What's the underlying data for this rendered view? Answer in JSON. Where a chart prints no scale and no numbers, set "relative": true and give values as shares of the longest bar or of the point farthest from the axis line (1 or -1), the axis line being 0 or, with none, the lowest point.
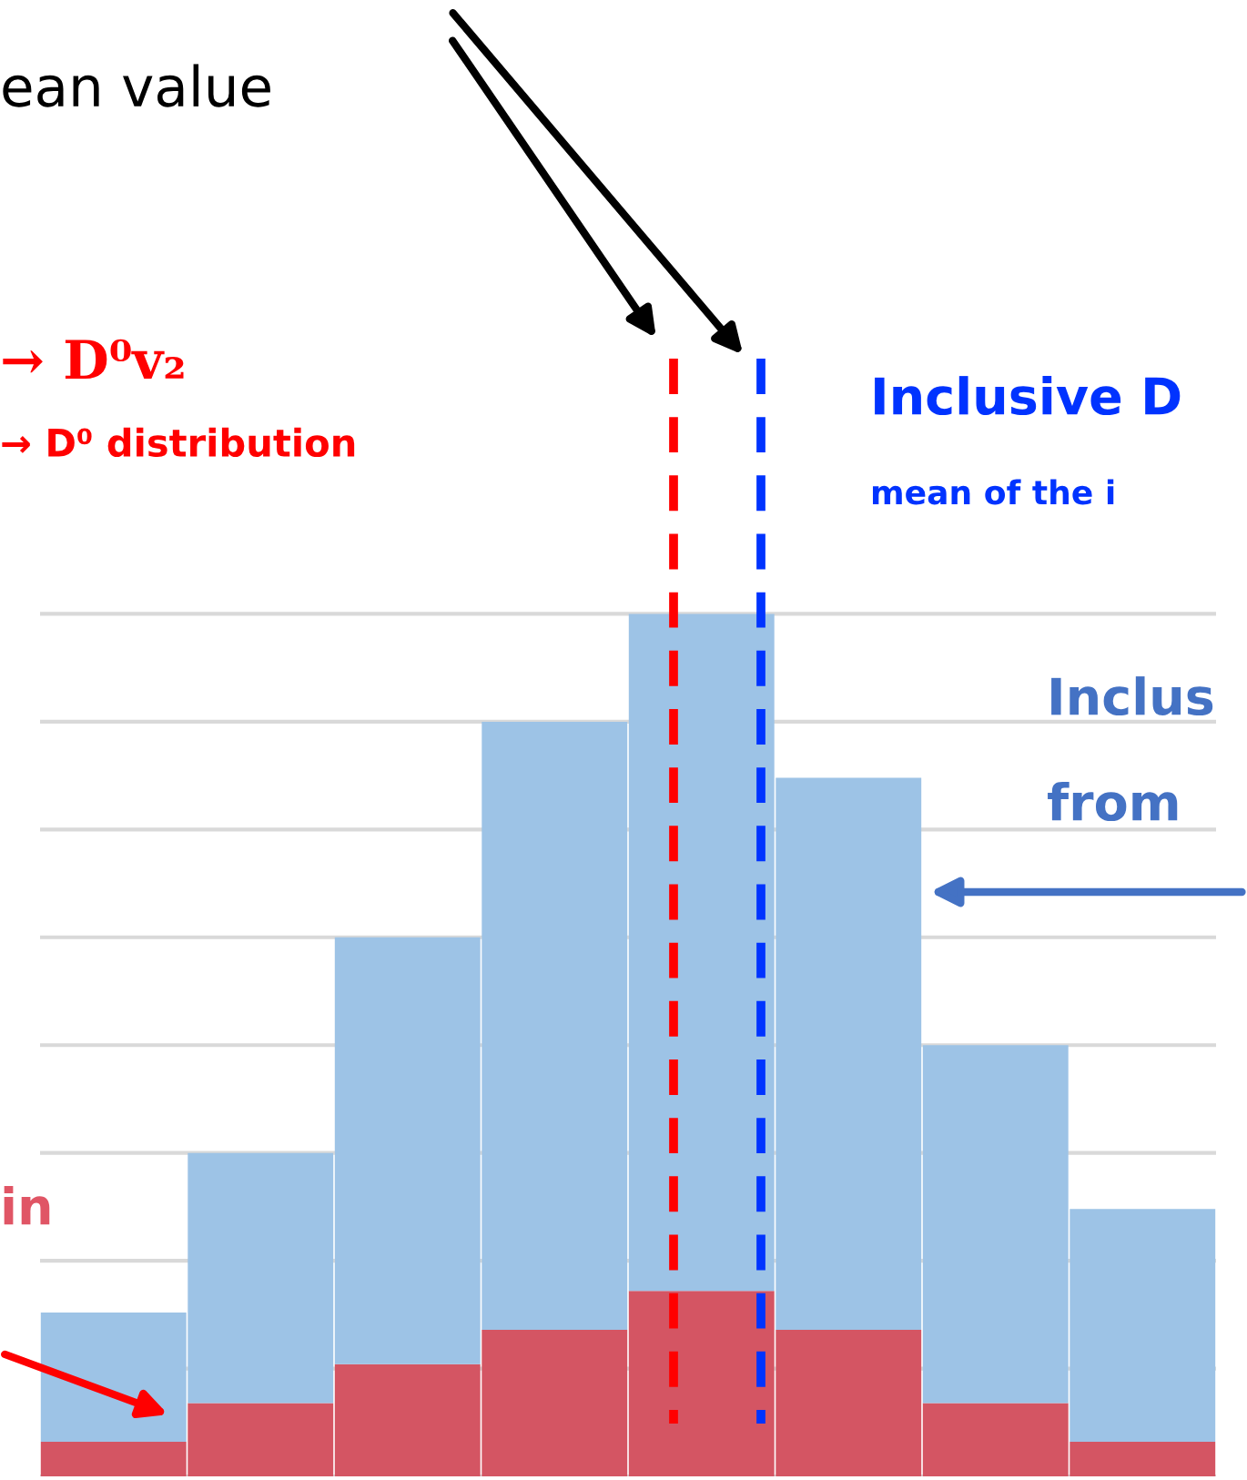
{
  "chart_data": {
    "type": "bar",
    "relative": true,
    "grid": "y",
    "categories": [
      null,
      null,
      null,
      null,
      null,
      null,
      null,
      null
    ],
    "stacked": true,
    "series": [
      {
        "color": "#d45563",
        "values": [
          0.04,
          0.085,
          0.13,
          0.17,
          0.215,
          0.17,
          0.085,
          0.04
        ]
      },
      {
        "color": "#9dc3e6",
        "values": [
          0.15,
          0.29,
          0.495,
          0.705,
          0.785,
          0.64,
          0.415,
          0.27
        ]
      }
    ],
    "annotations": [
      "ean value",
      "→ D⁰v₂",
      "→ D⁰ distribution",
      "Inclusive D",
      "mean of the i",
      "Inclus",
      "from",
      "in"
    ]
  }
}
